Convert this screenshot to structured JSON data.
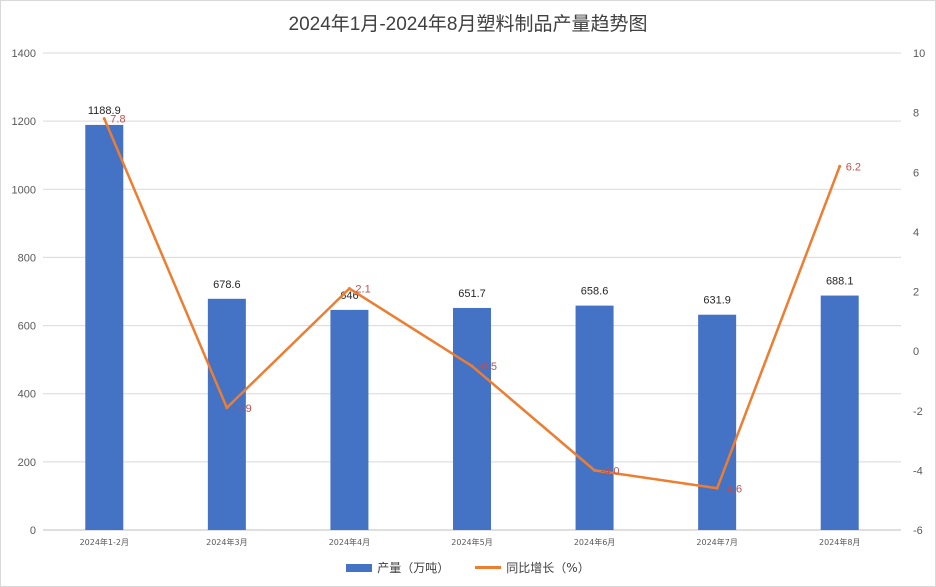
{
  "chart_data": {
    "type": "bar+line",
    "title": "2024年1月-2024年8月塑料制品产量趋势图",
    "categories": [
      "2024年1-2月",
      "2024年3月",
      "2024年4月",
      "2024年5月",
      "2024年6月",
      "2024年7月",
      "2024年8月"
    ],
    "series": [
      {
        "name": "产量（万吨）",
        "type": "bar",
        "axis": "left",
        "color": "#4472c4",
        "values": [
          1188.9,
          678.6,
          646,
          651.7,
          658.6,
          631.9,
          688.1
        ],
        "labels": [
          "1188.9",
          "678.6",
          "646",
          "651.7",
          "658.6",
          "631.9",
          "688.1"
        ]
      },
      {
        "name": "同比增长（%）",
        "type": "line",
        "axis": "right",
        "color": "#ed7d31",
        "label_color": "#c0504d",
        "values": [
          7.8,
          -1.9,
          2.1,
          -0.5,
          -4.0,
          -4.6,
          6.2
        ],
        "labels": [
          "7.8",
          "-1.9",
          "2.1",
          "-0.5",
          "-4.0",
          "-4.6",
          "6.2"
        ]
      }
    ],
    "y_left": {
      "min": 0,
      "max": 1400,
      "ticks": [
        0,
        200,
        400,
        600,
        800,
        1000,
        1200,
        1400
      ],
      "tick_labels": [
        "0",
        "200",
        "400",
        "600",
        "800",
        "1000",
        "1200",
        "1400"
      ]
    },
    "y_right": {
      "min": -6,
      "max": 10,
      "ticks": [
        -6,
        -4,
        -2,
        0,
        2,
        4,
        6,
        8,
        10
      ],
      "tick_labels": [
        "-6",
        "-4",
        "-2",
        "0",
        "2",
        "4",
        "6",
        "8",
        "10"
      ]
    },
    "grid": true,
    "legend_position": "bottom"
  }
}
